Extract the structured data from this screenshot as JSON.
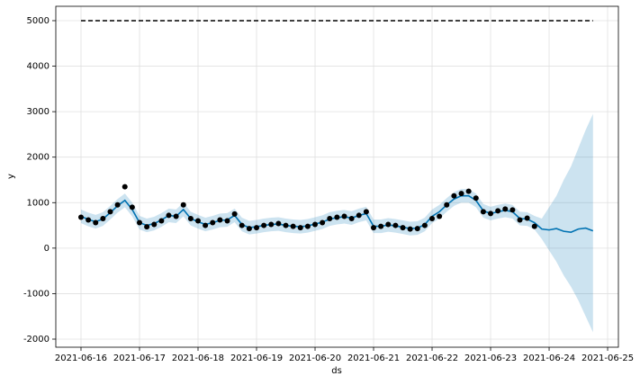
{
  "chart_data": {
    "type": "forecast",
    "xlabel": "ds",
    "ylabel": "y",
    "xlim": [
      "2021-06-15T13:40",
      "2021-06-25T04:25"
    ],
    "xticks": [
      "2021-06-16",
      "2021-06-17",
      "2021-06-18",
      "2021-06-19",
      "2021-06-20",
      "2021-06-21",
      "2021-06-22",
      "2021-06-23",
      "2021-06-24",
      "2021-06-25"
    ],
    "ylim": [
      -2178,
      5316
    ],
    "yticks": [
      -2000,
      -1000,
      0,
      1000,
      2000,
      3000,
      4000,
      5000
    ],
    "grid": true,
    "cap": 5000,
    "x": [
      "2021-06-16T00:00",
      "2021-06-16T03:00",
      "2021-06-16T06:00",
      "2021-06-16T09:00",
      "2021-06-16T12:00",
      "2021-06-16T15:00",
      "2021-06-16T18:00",
      "2021-06-16T21:00",
      "2021-06-17T00:00",
      "2021-06-17T03:00",
      "2021-06-17T06:00",
      "2021-06-17T09:00",
      "2021-06-17T12:00",
      "2021-06-17T15:00",
      "2021-06-17T18:00",
      "2021-06-17T21:00",
      "2021-06-18T00:00",
      "2021-06-18T03:00",
      "2021-06-18T06:00",
      "2021-06-18T09:00",
      "2021-06-18T12:00",
      "2021-06-18T15:00",
      "2021-06-18T18:00",
      "2021-06-18T21:00",
      "2021-06-19T00:00",
      "2021-06-19T03:00",
      "2021-06-19T06:00",
      "2021-06-19T09:00",
      "2021-06-19T12:00",
      "2021-06-19T15:00",
      "2021-06-19T18:00",
      "2021-06-19T21:00",
      "2021-06-20T00:00",
      "2021-06-20T03:00",
      "2021-06-20T06:00",
      "2021-06-20T09:00",
      "2021-06-20T12:00",
      "2021-06-20T15:00",
      "2021-06-20T18:00",
      "2021-06-20T21:00",
      "2021-06-21T00:00",
      "2021-06-21T03:00",
      "2021-06-21T06:00",
      "2021-06-21T09:00",
      "2021-06-21T12:00",
      "2021-06-21T15:00",
      "2021-06-21T18:00",
      "2021-06-21T21:00",
      "2021-06-22T00:00",
      "2021-06-22T03:00",
      "2021-06-22T06:00",
      "2021-06-22T09:00",
      "2021-06-22T12:00",
      "2021-06-22T15:00",
      "2021-06-22T18:00",
      "2021-06-22T21:00",
      "2021-06-23T00:00",
      "2021-06-23T03:00",
      "2021-06-23T06:00",
      "2021-06-23T09:00",
      "2021-06-23T12:00",
      "2021-06-23T15:00",
      "2021-06-23T18:00",
      "2021-06-23T21:00",
      "2021-06-24T00:00",
      "2021-06-24T03:00",
      "2021-06-24T06:00",
      "2021-06-24T09:00",
      "2021-06-24T12:00",
      "2021-06-24T15:00",
      "2021-06-24T18:00"
    ],
    "series": [
      {
        "color": "#000000",
        "values": [
          680,
          620,
          560,
          650,
          800,
          950,
          1350,
          900,
          560,
          470,
          520,
          600,
          720,
          700,
          950,
          650,
          600,
          500,
          560,
          620,
          600,
          750,
          500,
          430,
          450,
          500,
          520,
          540,
          500,
          480,
          450,
          480,
          520,
          560,
          650,
          680,
          700,
          650,
          720,
          800,
          450,
          480,
          520,
          500,
          450,
          420,
          430,
          500,
          650,
          700,
          950,
          1150,
          1200,
          1250,
          1100,
          800,
          760,
          820,
          860,
          840,
          620,
          660,
          480,
          null,
          null,
          null,
          null,
          null,
          null,
          null,
          null
        ]
      },
      {
        "color": "#0072b2",
        "values": [
          700,
          630,
          580,
          640,
          780,
          930,
          1050,
          850,
          560,
          500,
          540,
          620,
          720,
          700,
          850,
          650,
          580,
          520,
          560,
          610,
          620,
          720,
          520,
          450,
          470,
          500,
          520,
          530,
          500,
          480,
          470,
          490,
          530,
          570,
          640,
          670,
          690,
          660,
          720,
          760,
          480,
          480,
          510,
          490,
          460,
          430,
          440,
          520,
          700,
          800,
          950,
          1080,
          1150,
          1150,
          1050,
          820,
          760,
          800,
          830,
          800,
          650,
          640,
          560,
          420,
          400,
          430,
          370,
          350,
          420,
          440,
          380
        ]
      }
    ],
    "band": {
      "color": "#0072b2",
      "upper": [
        850,
        780,
        730,
        790,
        930,
        1080,
        1200,
        1000,
        710,
        650,
        690,
        770,
        870,
        850,
        1000,
        800,
        730,
        670,
        710,
        760,
        770,
        870,
        670,
        600,
        620,
        650,
        670,
        680,
        650,
        630,
        620,
        640,
        680,
        720,
        790,
        820,
        840,
        810,
        870,
        910,
        630,
        630,
        660,
        640,
        610,
        580,
        590,
        670,
        850,
        950,
        1100,
        1230,
        1300,
        1300,
        1200,
        970,
        910,
        950,
        980,
        950,
        800,
        790,
        710,
        650,
        900,
        1150,
        1500,
        1800,
        2200,
        2600,
        2950
      ],
      "lower": [
        550,
        480,
        430,
        490,
        630,
        780,
        900,
        700,
        410,
        350,
        390,
        470,
        570,
        550,
        700,
        500,
        430,
        370,
        410,
        460,
        470,
        570,
        370,
        300,
        320,
        350,
        370,
        380,
        350,
        330,
        320,
        340,
        380,
        420,
        490,
        520,
        540,
        510,
        570,
        610,
        330,
        330,
        360,
        340,
        310,
        280,
        290,
        370,
        550,
        650,
        800,
        930,
        1000,
        1000,
        900,
        670,
        610,
        650,
        680,
        650,
        500,
        490,
        410,
        200,
        -50,
        -300,
        -600,
        -850,
        -1150,
        -1500,
        -1850
      ]
    }
  }
}
